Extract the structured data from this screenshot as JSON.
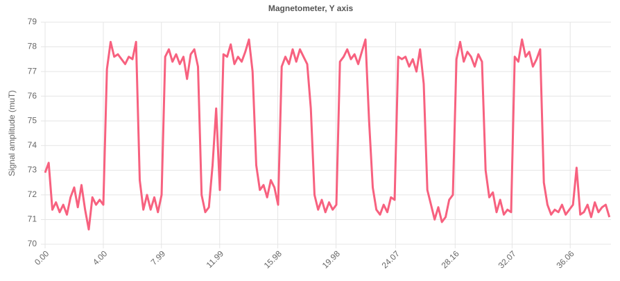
{
  "chart_data": {
    "type": "line",
    "title": "Magnetometer, Y axis",
    "y_label": "Signal amplitude (muT)",
    "color": "#f7617f",
    "grid": true,
    "ylim": [
      70,
      79
    ],
    "yticks": [
      70,
      71,
      72,
      73,
      74,
      75,
      76,
      77,
      78,
      79
    ],
    "xlim": [
      0,
      38.86
    ],
    "xticks": [
      {
        "value": 0,
        "label": "0.00"
      },
      {
        "value": 4,
        "label": "4.00"
      },
      {
        "value": 7.99,
        "label": "7.99"
      },
      {
        "value": 11.99,
        "label": "11.99"
      },
      {
        "value": 15.98,
        "label": "15.98"
      },
      {
        "value": 19.98,
        "label": "19.98"
      },
      {
        "value": 24.07,
        "label": "24.07"
      },
      {
        "value": 28.16,
        "label": "28.16"
      },
      {
        "value": 32.07,
        "label": "32.07"
      },
      {
        "value": 36.06,
        "label": "36.06"
      }
    ],
    "x": [
      0,
      0.25,
      0.5,
      0.75,
      1,
      1.25,
      1.5,
      1.75,
      2,
      2.25,
      2.5,
      2.75,
      3,
      3.25,
      3.5,
      3.75,
      4,
      4.25,
      4.5,
      4.75,
      5,
      5.25,
      5.5,
      5.75,
      6,
      6.25,
      6.5,
      6.75,
      7,
      7.25,
      7.5,
      7.75,
      8,
      8.25,
      8.5,
      8.75,
      9,
      9.25,
      9.5,
      9.75,
      10,
      10.25,
      10.5,
      10.75,
      11,
      11.25,
      11.5,
      11.75,
      12,
      12.25,
      12.5,
      12.75,
      13,
      13.25,
      13.5,
      13.75,
      14,
      14.25,
      14.5,
      14.75,
      15,
      15.25,
      15.5,
      15.75,
      16,
      16.25,
      16.5,
      16.75,
      17,
      17.25,
      17.5,
      17.75,
      18,
      18.25,
      18.5,
      18.75,
      19,
      19.25,
      19.5,
      19.75,
      20,
      20.25,
      20.5,
      20.75,
      21,
      21.25,
      21.5,
      21.75,
      22,
      22.25,
      22.5,
      22.75,
      23,
      23.25,
      23.5,
      23.75,
      24,
      24.25,
      24.5,
      24.75,
      25,
      25.25,
      25.5,
      25.75,
      26,
      26.25,
      26.5,
      26.75,
      27,
      27.25,
      27.5,
      27.75,
      28,
      28.25,
      28.5,
      28.75,
      29,
      29.25,
      29.5,
      29.75,
      30,
      30.25,
      30.5,
      30.75,
      31,
      31.25,
      31.5,
      31.75,
      32,
      32.25,
      32.5,
      32.75,
      33,
      33.25,
      33.5,
      33.75,
      34,
      34.25,
      34.5,
      34.75,
      35,
      35.25,
      35.5,
      35.75,
      36,
      36.25,
      36.5,
      36.75,
      37,
      37.25,
      37.5,
      37.75,
      38,
      38.25,
      38.5,
      38.75
    ],
    "values": [
      72.9,
      73.3,
      71.4,
      71.7,
      71.3,
      71.6,
      71.2,
      71.9,
      72.3,
      71.5,
      72.4,
      71.4,
      70.6,
      71.9,
      71.6,
      71.8,
      71.6,
      77.1,
      78.2,
      77.6,
      77.7,
      77.5,
      77.3,
      77.6,
      77.5,
      78.2,
      72.6,
      71.4,
      72.0,
      71.4,
      71.9,
      71.3,
      72.0,
      77.6,
      77.9,
      77.4,
      77.7,
      77.3,
      77.6,
      76.7,
      77.7,
      77.9,
      77.2,
      72.0,
      71.3,
      71.5,
      73.2,
      75.5,
      72.2,
      77.7,
      77.6,
      78.1,
      77.3,
      77.6,
      77.4,
      77.8,
      78.3,
      77.0,
      73.2,
      72.2,
      72.4,
      71.9,
      72.6,
      72.3,
      71.6,
      77.2,
      77.6,
      77.3,
      77.9,
      77.4,
      77.9,
      77.6,
      77.3,
      75.5,
      72.0,
      71.4,
      71.8,
      71.3,
      71.7,
      71.4,
      71.6,
      77.4,
      77.6,
      77.9,
      77.5,
      77.7,
      77.3,
      77.8,
      78.3,
      75.0,
      72.3,
      71.4,
      71.2,
      71.6,
      71.3,
      71.9,
      71.8,
      77.6,
      77.5,
      77.6,
      77.2,
      77.5,
      77.0,
      77.9,
      76.5,
      72.2,
      71.6,
      71.0,
      71.5,
      70.9,
      71.1,
      71.8,
      72.0,
      77.5,
      78.2,
      77.4,
      77.8,
      77.6,
      77.2,
      77.7,
      77.4,
      73.0,
      71.9,
      72.1,
      71.3,
      71.8,
      71.2,
      71.4,
      71.3,
      77.6,
      77.4,
      78.3,
      77.6,
      77.8,
      77.2,
      77.5,
      77.9,
      72.5,
      71.6,
      71.2,
      71.4,
      71.3,
      71.6,
      71.2,
      71.4,
      71.6,
      73.1,
      71.2,
      71.3,
      71.6,
      71.1,
      71.7,
      71.3,
      71.5,
      71.6,
      71.1
    ]
  }
}
